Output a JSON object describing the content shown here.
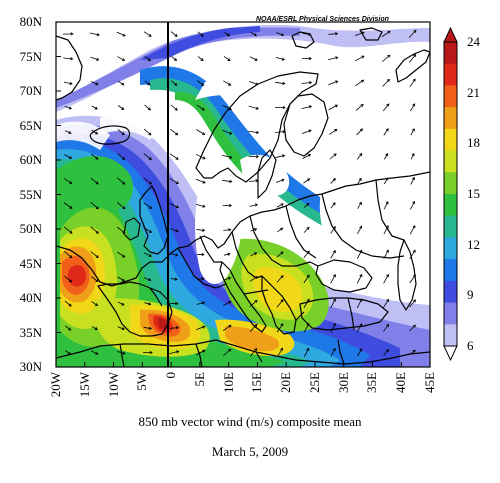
{
  "map": {
    "credit": "NOAA/ESRL Physical Sciences Division",
    "caption": "850 mb vector wind (m/s) composite mean",
    "date": "March 5, 2009",
    "lat_labels": [
      "80N",
      "75N",
      "70N",
      "65N",
      "60N",
      "55N",
      "50N",
      "45N",
      "40N",
      "35N",
      "30N"
    ],
    "lon_labels": [
      "20W",
      "15W",
      "10W",
      "5W",
      "0",
      "5E",
      "10E",
      "15E",
      "20E",
      "25E",
      "30E",
      "35E",
      "40E",
      "45E"
    ],
    "colorbar": {
      "tick_labels": [
        "6",
        "9",
        "12",
        "15",
        "18",
        "21",
        "24"
      ],
      "colors": [
        "#bfbff5",
        "#8080e8",
        "#3f4ce0",
        "#1f78e8",
        "#2fa8e0",
        "#28b890",
        "#30c040",
        "#78d028",
        "#c8e020",
        "#f0d818",
        "#f0a018",
        "#f06018",
        "#e02818",
        "#b81818"
      ]
    },
    "extent": {
      "lon_min": -20,
      "lon_max": 45,
      "lat_min": 30,
      "lat_max": 80
    }
  }
}
